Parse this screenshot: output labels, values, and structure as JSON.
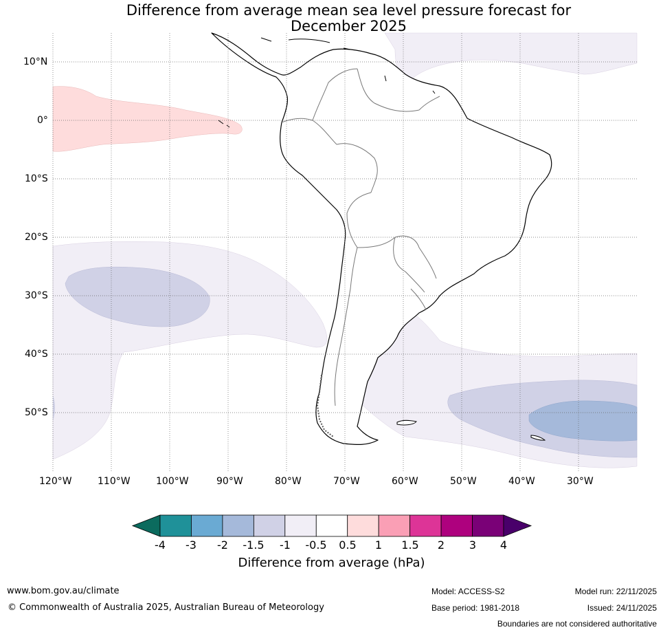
{
  "title_line1": "Difference from average mean sea level pressure forecast for",
  "title_line2": "December 2025",
  "lat_labels": [
    "10°N",
    "0°",
    "10°S",
    "20°S",
    "30°S",
    "40°S",
    "50°S"
  ],
  "lon_labels": [
    "120°W",
    "110°W",
    "100°W",
    "90°W",
    "80°W",
    "70°W",
    "60°W",
    "50°W",
    "40°W",
    "30°W"
  ],
  "colorbar": {
    "title": "Difference from average (hPa)",
    "ticks": [
      "-4",
      "-3",
      "-2",
      "-1.5",
      "-1",
      "-0.5",
      "0.5",
      "1",
      "1.5",
      "2",
      "3",
      "4"
    ],
    "colors": [
      "#0b6b5e",
      "#1f9199",
      "#6aaad3",
      "#a5b9da",
      "#d0d1e6",
      "#f1eef6",
      "#ffffff",
      "#fedcdc",
      "#fa9fb5",
      "#dd3497",
      "#ae017e",
      "#7a0177",
      "#49006a"
    ]
  },
  "footer": {
    "website": "www.bom.gov.au/climate",
    "copyright": "© Commonwealth of Australia 2025, Australian Bureau of Meteorology",
    "model": "Model: ACCESS-S2",
    "base_period": "Base period: 1981-2018",
    "model_run": "Model run: 22/11/2025",
    "issued": "Issued: 24/11/2025",
    "disclaimer": "Boundaries are not considered authoritative"
  }
}
